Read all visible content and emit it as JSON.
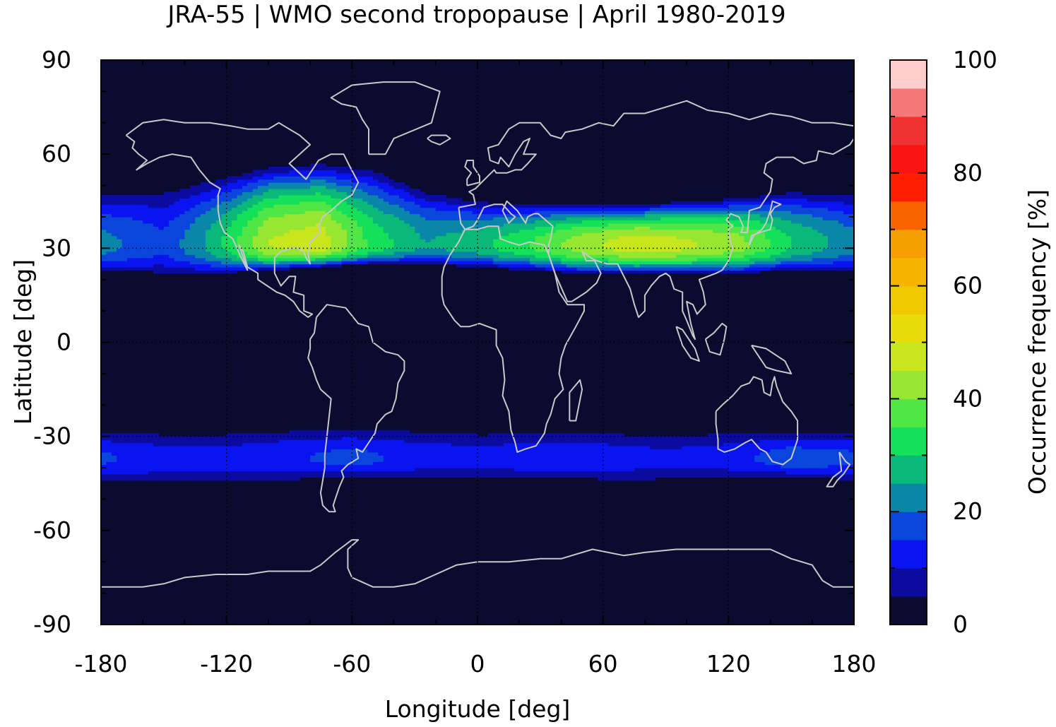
{
  "chart_data": {
    "type": "heatmap",
    "title": "JRA-55 | WMO second tropopause | April 1980-2019",
    "xlabel": "Longitude [deg]",
    "ylabel": "Latitude [deg]",
    "xlim": [
      -180,
      180
    ],
    "ylim": [
      -90,
      90
    ],
    "xticks": [
      "-180",
      "-120",
      "-60",
      "0",
      "60",
      "120",
      "180"
    ],
    "yticks": [
      "90",
      "60",
      "30",
      "0",
      "-30",
      "-60",
      "-90"
    ],
    "colorbar": {
      "label": "Occurrence frequency [%]",
      "range": [
        0,
        100
      ],
      "ticks": [
        "0",
        "20",
        "40",
        "60",
        "80",
        "100"
      ],
      "levels": [
        0,
        5,
        10,
        15,
        20,
        25,
        30,
        35,
        40,
        45,
        50,
        55,
        60,
        65,
        70,
        75,
        80,
        85,
        90,
        95,
        100
      ],
      "colors": [
        "#0b0b30",
        "#0b0ba0",
        "#0a14f0",
        "#0a46dc",
        "#0a87a8",
        "#0ab97a",
        "#14e05a",
        "#50e646",
        "#96e632",
        "#c8e61e",
        "#e6dc0a",
        "#f0c800",
        "#f5b400",
        "#f5a000",
        "#fa6400",
        "#ff1e00",
        "#fa1414",
        "#f03232",
        "#f57878",
        "#ffcccc"
      ]
    },
    "background_color": "#0b0b30",
    "coastline_color": "#c8c8c8",
    "grid": "dotted at 0 and ±30 deg",
    "bands": [
      {
        "name": "northern subtropical band",
        "peak_lat": 31,
        "samples": [
          {
            "lon": -180,
            "lat_s": 23,
            "lat_n": 47,
            "peak": 22
          },
          {
            "lon": -150,
            "lat_s": 22,
            "lat_n": 48,
            "peak": 16
          },
          {
            "lon": -125,
            "lat_s": 22,
            "lat_n": 52,
            "peak": 28
          },
          {
            "lon": -100,
            "lat_s": 23,
            "lat_n": 56,
            "peak": 45
          },
          {
            "lon": -75,
            "lat_s": 24,
            "lat_n": 57,
            "peak": 48
          },
          {
            "lon": -50,
            "lat_s": 25,
            "lat_n": 55,
            "peak": 33
          },
          {
            "lon": -25,
            "lat_s": 25,
            "lat_n": 48,
            "peak": 25
          },
          {
            "lon": 0,
            "lat_s": 24,
            "lat_n": 45,
            "peak": 28
          },
          {
            "lon": 25,
            "lat_s": 23,
            "lat_n": 44,
            "peak": 35
          },
          {
            "lon": 50,
            "lat_s": 22,
            "lat_n": 44,
            "peak": 43
          },
          {
            "lon": 75,
            "lat_s": 22,
            "lat_n": 44,
            "peak": 48
          },
          {
            "lon": 100,
            "lat_s": 22,
            "lat_n": 45,
            "peak": 46
          },
          {
            "lon": 125,
            "lat_s": 22,
            "lat_n": 46,
            "peak": 42
          },
          {
            "lon": 150,
            "lat_s": 23,
            "lat_n": 48,
            "peak": 30
          },
          {
            "lon": 180,
            "lat_s": 23,
            "lat_n": 47,
            "peak": 22
          }
        ]
      },
      {
        "name": "southern subtropical band",
        "peak_lat": -37,
        "samples": [
          {
            "lon": -180,
            "lat_s": -44,
            "lat_n": -29,
            "peak": 16
          },
          {
            "lon": -150,
            "lat_s": -45,
            "lat_n": -29,
            "peak": 12
          },
          {
            "lon": -120,
            "lat_s": -45,
            "lat_n": -29,
            "peak": 12
          },
          {
            "lon": -90,
            "lat_s": -44,
            "lat_n": -28,
            "peak": 14
          },
          {
            "lon": -60,
            "lat_s": -43,
            "lat_n": -28,
            "peak": 17
          },
          {
            "lon": -30,
            "lat_s": -43,
            "lat_n": -28,
            "peak": 13
          },
          {
            "lon": 0,
            "lat_s": -43,
            "lat_n": -29,
            "peak": 12
          },
          {
            "lon": 30,
            "lat_s": -43,
            "lat_n": -29,
            "peak": 14
          },
          {
            "lon": 60,
            "lat_s": -44,
            "lat_n": -29,
            "peak": 13
          },
          {
            "lon": 90,
            "lat_s": -44,
            "lat_n": -29,
            "peak": 11
          },
          {
            "lon": 120,
            "lat_s": -43,
            "lat_n": -29,
            "peak": 13
          },
          {
            "lon": 150,
            "lat_s": -43,
            "lat_n": -29,
            "peak": 18
          },
          {
            "lon": 180,
            "lat_s": -44,
            "lat_n": -29,
            "peak": 16
          }
        ]
      }
    ]
  }
}
